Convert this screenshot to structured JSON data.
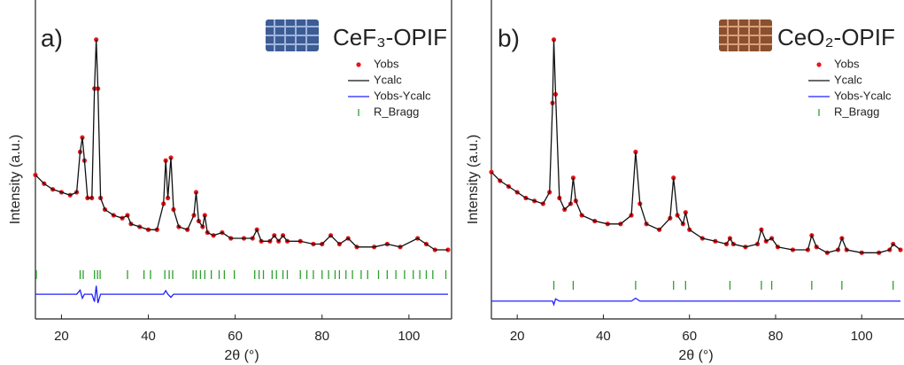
{
  "chart_data": [
    {
      "type": "line",
      "panel": "a)",
      "title": "CeF₃-OPIF",
      "title_color": "#4a78c8",
      "x_label": "2θ (°)",
      "y_label": "Intensity (a.u.)",
      "xlim": [
        14,
        109
      ],
      "xticks": [
        20,
        40,
        60,
        80,
        100
      ],
      "ylim": [
        0,
        100
      ],
      "legend": "upper right",
      "x": [
        14,
        16,
        18,
        20,
        22,
        23.5,
        24.3,
        24.8,
        25.3,
        26,
        27,
        27.6,
        28,
        28.4,
        29,
        30,
        32,
        34,
        35.2,
        36,
        38,
        40,
        42,
        43.5,
        44,
        44.5,
        45.2,
        45.8,
        47,
        49,
        50.5,
        51,
        51.6,
        52.5,
        53,
        53.6,
        55,
        57,
        59,
        62,
        64,
        65,
        66,
        68,
        69,
        70,
        71,
        72,
        75,
        78,
        80,
        82,
        84,
        86,
        88,
        92,
        95,
        98,
        102,
        104,
        106,
        109
      ],
      "series": [
        {
          "name": "Yobs",
          "color": "#e8151b",
          "style": "dot",
          "values": [
            50,
            47,
            45,
            44,
            43,
            44,
            58,
            63,
            55,
            42,
            42,
            80,
            97,
            80,
            42,
            38,
            36,
            35,
            36,
            33,
            32,
            31,
            31,
            40,
            55,
            42,
            56,
            38,
            32,
            31,
            36,
            44,
            34,
            32,
            36,
            30,
            29,
            30,
            28,
            28,
            28,
            31,
            27,
            27,
            29,
            27,
            29,
            27,
            27,
            26,
            26,
            29,
            26,
            28,
            25,
            25,
            26,
            25,
            28,
            26,
            24,
            24
          ]
        },
        {
          "name": "Ycalc",
          "color": "#111111",
          "style": "line",
          "values": [
            50,
            47,
            45,
            44,
            43,
            44,
            58,
            63,
            55,
            42,
            42,
            80,
            97,
            80,
            42,
            38,
            36,
            35,
            36,
            33,
            32,
            31,
            31,
            40,
            55,
            42,
            56,
            38,
            32,
            31,
            36,
            44,
            34,
            32,
            36,
            30,
            29,
            30,
            28,
            28,
            28,
            31,
            27,
            27,
            29,
            27,
            29,
            27,
            27,
            26,
            26,
            29,
            26,
            28,
            25,
            25,
            26,
            25,
            28,
            26,
            24,
            24
          ]
        },
        {
          "name": "Yobs-Ycalc",
          "color": "#2020ff",
          "style": "line",
          "values": [
            8.6,
            8.6,
            8.6,
            8.6,
            8.6,
            8.6,
            10,
            7.2,
            8.6,
            8.6,
            8.6,
            6,
            11.5,
            5.5,
            8.6,
            8.6,
            8.6,
            8.6,
            8.6,
            8.6,
            8.6,
            8.6,
            8.6,
            8.6,
            9.8,
            8.6,
            7.5,
            8.6,
            8.6,
            8.6,
            8.6,
            8.6,
            8.6,
            8.6,
            8.6,
            8.6,
            8.6,
            8.6,
            8.6,
            8.6,
            8.6,
            8.6,
            8.6,
            8.6,
            8.6,
            8.6,
            8.6,
            8.6,
            8.6,
            8.6,
            8.6,
            8.6,
            8.6,
            8.6,
            8.6,
            8.6,
            8.6,
            8.6,
            8.6,
            8.6,
            8.6,
            8.6
          ]
        },
        {
          "name": "R_Bragg",
          "color": "#2ca02c",
          "style": "tick",
          "positions": [
            14.2,
            24.3,
            25,
            27.6,
            28.3,
            28.9,
            35.2,
            39,
            40.5,
            43.8,
            44.8,
            45.6,
            50.3,
            51,
            52,
            53,
            54.5,
            56.3,
            57.5,
            59.8,
            64.5,
            65.5,
            66.5,
            68.5,
            69.5,
            71,
            72,
            75,
            76.5,
            78,
            80,
            81.5,
            83,
            84,
            85.5,
            87,
            89,
            90.5,
            93,
            95,
            97,
            99,
            101,
            102.5,
            104,
            105.5,
            108.5
          ]
        }
      ]
    },
    {
      "type": "line",
      "panel": "b)",
      "title": "CeO₂-OPIF",
      "title_color": "#e8812f",
      "x_label": "2θ (°)",
      "y_label": "Intensity (a.u.)",
      "xlim": [
        14,
        109
      ],
      "xticks": [
        20,
        40,
        60,
        80,
        100
      ],
      "ylim": [
        0,
        100
      ],
      "legend": "upper right",
      "x": [
        14,
        16,
        18,
        20,
        22,
        24,
        26,
        27.5,
        28.2,
        28.5,
        28.9,
        29.8,
        31,
        32.4,
        33,
        33.6,
        35,
        38,
        41,
        44,
        46.5,
        47.5,
        48.5,
        50,
        53,
        55.5,
        56.3,
        57.2,
        58.5,
        59.1,
        60,
        63,
        66,
        68.6,
        69.4,
        70.2,
        73,
        75.8,
        76.7,
        77.8,
        79.1,
        80.5,
        84,
        87.5,
        88.4,
        89.5,
        92,
        94.5,
        95.4,
        96.5,
        100,
        104,
        106.5,
        107.3,
        109
      ],
      "series": [
        {
          "name": "Yobs",
          "color": "#e8151b",
          "style": "dot",
          "values": [
            51,
            48,
            46,
            44,
            42,
            41,
            40,
            44,
            75,
            97,
            78,
            42,
            38,
            40,
            49,
            41,
            36,
            34,
            33,
            33,
            36,
            58,
            40,
            33,
            31,
            35,
            49,
            36,
            33,
            37,
            31,
            28,
            27,
            26,
            28,
            26,
            25,
            26,
            31,
            27,
            28,
            25,
            24,
            24,
            29,
            25,
            23,
            24,
            28,
            24,
            23,
            23,
            24,
            26,
            24
          ]
        },
        {
          "name": "Ycalc",
          "color": "#111111",
          "style": "line",
          "values": [
            51,
            48,
            46,
            44,
            42,
            41,
            40,
            44,
            75,
            97,
            78,
            42,
            38,
            40,
            49,
            41,
            36,
            34,
            33,
            33,
            36,
            58,
            40,
            33,
            31,
            35,
            49,
            36,
            33,
            37,
            31,
            28,
            27,
            26,
            28,
            26,
            25,
            26,
            31,
            27,
            28,
            25,
            24,
            24,
            29,
            25,
            23,
            24,
            28,
            24,
            23,
            23,
            24,
            26,
            24
          ]
        },
        {
          "name": "Yobs-Ycalc",
          "color": "#2020ff",
          "style": "line",
          "values": [
            6.2,
            6.2,
            6.2,
            6.2,
            6.2,
            6.2,
            6.2,
            6.2,
            6.2,
            5,
            7,
            6.2,
            6.2,
            6.2,
            6.2,
            6.2,
            6.2,
            6.2,
            6.2,
            6.2,
            6.2,
            7.2,
            6.2,
            6.2,
            6.2,
            6.2,
            6.2,
            6.2,
            6.2,
            6.2,
            6.2,
            6.2,
            6.2,
            6.2,
            6.2,
            6.2,
            6.2,
            6.2,
            6.2,
            6.2,
            6.2,
            6.2,
            6.2,
            6.2,
            6.2,
            6.2,
            6.2,
            6.2,
            6.2,
            6.2,
            6.2,
            6.2,
            6.2,
            6.2,
            6.2
          ]
        },
        {
          "name": "R_Bragg",
          "color": "#2ca02c",
          "style": "tick",
          "positions": [
            28.5,
            33,
            47.5,
            56.3,
            59.1,
            69.4,
            76.7,
            79.1,
            88.4,
            95.4,
            107.3
          ]
        }
      ]
    }
  ]
}
